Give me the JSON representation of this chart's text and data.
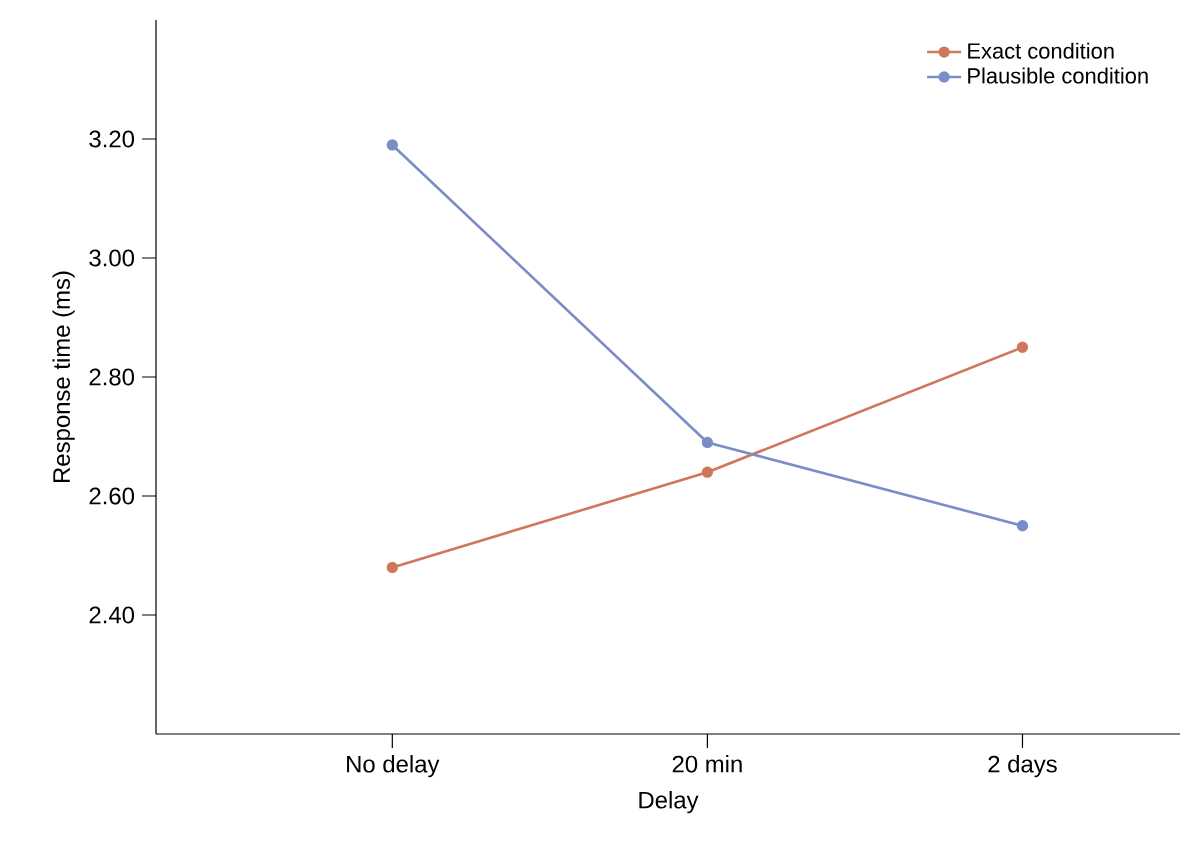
{
  "chart_data": {
    "type": "line",
    "xlabel": "Delay",
    "ylabel": "Response time (ms)",
    "categories": [
      "No delay",
      "20 min",
      "2 days"
    ],
    "series": [
      {
        "name": "Exact condition",
        "color": "#d0765a",
        "values": [
          2.48,
          2.64,
          2.85
        ]
      },
      {
        "name": "Plausible condition",
        "color": "#7b8cc8",
        "values": [
          3.19,
          2.69,
          2.55
        ]
      }
    ],
    "ylim": [
      2.2,
      3.4
    ],
    "yticks": [
      {
        "value": 2.4,
        "label": "2.40"
      },
      {
        "value": 2.6,
        "label": "2.60"
      },
      {
        "value": 2.8,
        "label": "2.80"
      },
      {
        "value": 3.0,
        "label": "3.00"
      },
      {
        "value": 3.2,
        "label": "3.20"
      }
    ],
    "grid": false,
    "legend": "top right",
    "marker": "circle",
    "line_style": "solid"
  }
}
